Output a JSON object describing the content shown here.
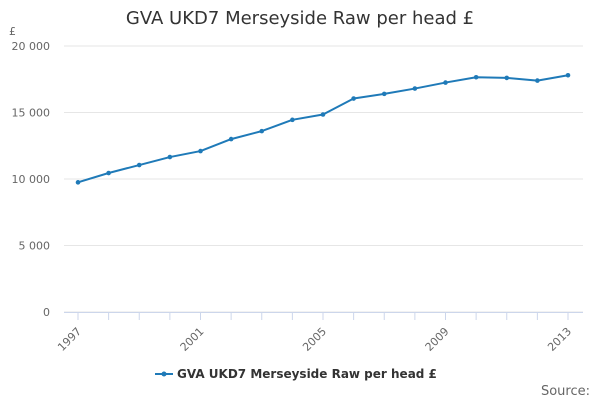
{
  "chart_data": {
    "type": "line",
    "title": "GVA UKD7 Merseyside Raw per head £",
    "y_unit": "£",
    "xlabel": "",
    "ylabel": "",
    "x": [
      1997,
      1998,
      1999,
      2000,
      2001,
      2002,
      2003,
      2004,
      2005,
      2006,
      2007,
      2008,
      2009,
      2010,
      2011,
      2012,
      2013
    ],
    "x_ticks": [
      1997,
      2001,
      2005,
      2009,
      2013
    ],
    "y_ticks": [
      "0",
      "5 000",
      "10 000",
      "15 000",
      "20 000"
    ],
    "y_tick_values": [
      0,
      5000,
      10000,
      15000,
      20000
    ],
    "ylim": [
      0,
      20000
    ],
    "xlim": [
      1997,
      2013
    ],
    "grid": true,
    "legend_position": "bottom",
    "series": [
      {
        "name": "GVA UKD7 Merseyside Raw per head £",
        "color": "#1f7ab8",
        "values": [
          9750,
          10450,
          11050,
          11650,
          12100,
          13000,
          13600,
          14450,
          14850,
          16050,
          16400,
          16800,
          17250,
          17650,
          17600,
          17400,
          17800
        ]
      }
    ],
    "source_label": "Source:"
  }
}
